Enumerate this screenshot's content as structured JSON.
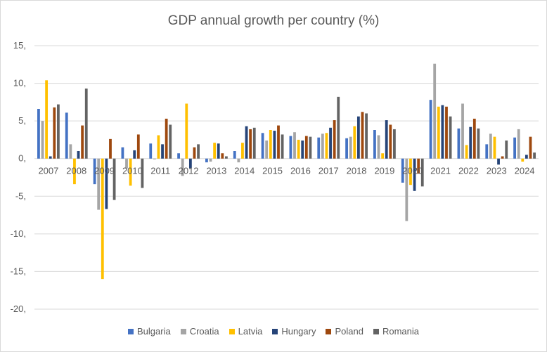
{
  "chart_data": {
    "type": "bar",
    "title": "GDP annual growth per country (%)",
    "xlabel": "",
    "ylabel": "",
    "ylim": [
      -20,
      15
    ],
    "yticks": [
      15,
      10,
      5,
      0,
      -5,
      -10,
      -15,
      -20
    ],
    "ytick_labels": [
      "15,",
      "10,",
      "5,",
      "0,",
      "-5,",
      "-10,",
      "-15,",
      "-20,"
    ],
    "grid": "horizontal",
    "legend_position": "bottom",
    "categories": [
      "2007",
      "2008",
      "2009",
      "2010",
      "2011",
      "2012",
      "2013",
      "2014",
      "2015",
      "2016",
      "2017",
      "2018",
      "2019",
      "2020",
      "2021",
      "2022",
      "2023",
      "2024"
    ],
    "series": [
      {
        "name": "Bulgaria",
        "color": "#4472C4",
        "values": [
          6.6,
          6.1,
          -3.4,
          1.5,
          2.0,
          0.7,
          -0.5,
          1.0,
          3.4,
          3.0,
          2.8,
          2.7,
          3.8,
          -3.2,
          7.8,
          4.0,
          1.9,
          2.8
        ]
      },
      {
        "name": "Croatia",
        "color": "#A5A5A5",
        "values": [
          5.0,
          1.9,
          -6.8,
          -1.3,
          -0.1,
          -2.3,
          -0.4,
          -0.5,
          2.4,
          3.5,
          3.3,
          2.9,
          3.1,
          -8.3,
          12.6,
          7.3,
          3.3,
          3.9
        ]
      },
      {
        "name": "Latvia",
        "color": "#FFC000",
        "values": [
          10.4,
          -3.4,
          -16.0,
          -3.6,
          3.1,
          7.3,
          2.1,
          2.1,
          3.8,
          2.5,
          3.4,
          4.3,
          0.7,
          -3.5,
          6.9,
          1.8,
          2.9,
          -0.4
        ]
      },
      {
        "name": "Hungary",
        "color": "#264478",
        "values": [
          0.3,
          1.0,
          -6.7,
          1.1,
          1.9,
          -1.3,
          2.0,
          4.3,
          3.7,
          2.4,
          4.1,
          5.6,
          5.1,
          -4.3,
          7.1,
          4.2,
          -0.8,
          0.5
        ]
      },
      {
        "name": "Poland",
        "color": "#9E480E",
        "values": [
          6.8,
          4.4,
          2.6,
          3.2,
          5.3,
          1.5,
          0.7,
          3.9,
          4.4,
          3.0,
          5.1,
          6.2,
          4.5,
          -2.0,
          6.9,
          5.3,
          0.3,
          2.9
        ]
      },
      {
        "name": "Romania",
        "color": "#636363",
        "values": [
          7.2,
          9.3,
          -5.5,
          -3.9,
          4.5,
          1.9,
          0.3,
          4.1,
          3.2,
          2.9,
          8.2,
          6.0,
          3.9,
          -3.7,
          5.6,
          4.0,
          2.4,
          0.8
        ]
      }
    ]
  }
}
